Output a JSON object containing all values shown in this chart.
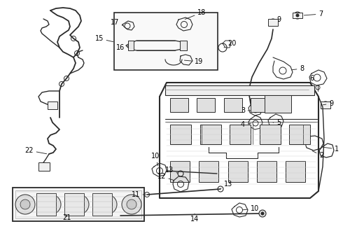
{
  "bg_color": "#ffffff",
  "lc": "#2a2a2a",
  "fs": 7.0,
  "figsize": [
    4.9,
    3.6
  ],
  "dpi": 100
}
